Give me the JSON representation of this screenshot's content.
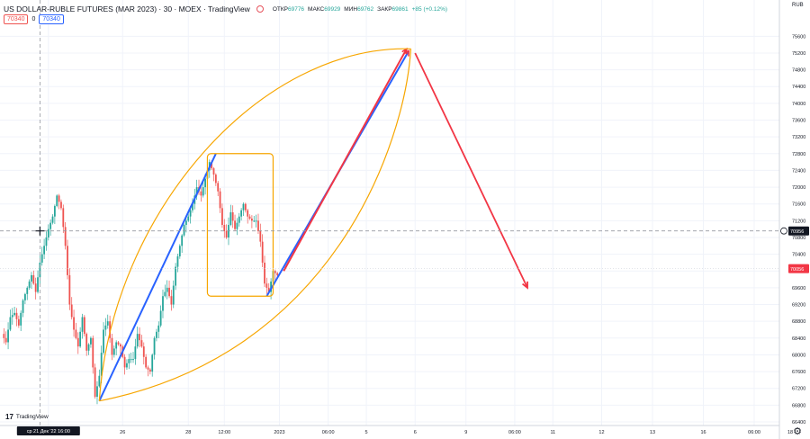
{
  "header": {
    "symbol": "US DOLLAR-RUBLE FUTURES (MAR 2023) · 30 · MOEX · TradingView",
    "open_label": "ОТКР",
    "open_value": "69776",
    "high_label": "МАКС",
    "high_value": "69929",
    "low_label": "МИН",
    "low_value": "69762",
    "close_label": "ЗАКР",
    "close_value": "69861",
    "change": "+85 (+0.12%)",
    "price_red": "70340",
    "zero": "0",
    "price_blue": "70340"
  },
  "logo_text": "TradingView",
  "colors": {
    "up": "#26a69a",
    "down": "#ef5350",
    "blue_line": "#2962ff",
    "red_line": "#f23645",
    "orange": "#f7a600",
    "last_price": "#f23645",
    "crosshair_label": "#131722"
  },
  "chart_data": {
    "type": "candlestick",
    "currency": "RUB",
    "ylim": [
      66400,
      75800
    ],
    "y_ticks": [
      66400,
      66800,
      67200,
      67600,
      68000,
      68400,
      68800,
      69200,
      69600,
      70000,
      70400,
      70800,
      71200,
      71600,
      72000,
      72400,
      72800,
      73200,
      73600,
      74000,
      74400,
      74800,
      75200,
      75600
    ],
    "y_tick_labels": [
      "66400",
      "66800",
      "67200",
      "67600",
      "68000",
      "68400",
      "68800",
      "69200",
      "69600",
      "70000",
      "70400",
      "70800",
      "71200",
      "71600",
      "72000",
      "72400",
      "72800",
      "73200",
      "73600",
      "74000",
      "74400",
      "74800",
      "75200",
      "75600"
    ],
    "x_ticks": [
      {
        "i": 22,
        "label": "ср 21 Дек '22  16:00",
        "highlight": true
      },
      {
        "i": 57,
        "label": "26"
      },
      {
        "i": 88,
        "label": "28"
      },
      {
        "i": 105,
        "label": "12:00"
      },
      {
        "i": 131,
        "label": "2023"
      },
      {
        "i": 154,
        "label": "06:00"
      },
      {
        "i": 172,
        "label": "5"
      },
      {
        "i": 195,
        "label": "6"
      },
      {
        "i": 219,
        "label": "9"
      },
      {
        "i": 242,
        "label": "06:00"
      },
      {
        "i": 260,
        "label": "11"
      },
      {
        "i": 283,
        "label": "12"
      },
      {
        "i": 307,
        "label": "13"
      },
      {
        "i": 331,
        "label": "16"
      },
      {
        "i": 355,
        "label": "06:00"
      },
      {
        "i": 372,
        "label": "18"
      }
    ],
    "last_price_label": "70056",
    "crosshair_price_label": "70956",
    "crosshair_price": 70956,
    "crosshair_x_index": 18,
    "path_points": [
      [
        0,
        68500
      ],
      [
        2,
        68300
      ],
      [
        4,
        68900
      ],
      [
        6,
        69000
      ],
      [
        8,
        68700
      ],
      [
        10,
        69300
      ],
      [
        12,
        69600
      ],
      [
        14,
        69900
      ],
      [
        16,
        69500
      ],
      [
        18,
        70200
      ],
      [
        20,
        70600
      ],
      [
        22,
        71000
      ],
      [
        24,
        71300
      ],
      [
        26,
        71800
      ],
      [
        28,
        71500
      ],
      [
        30,
        70600
      ],
      [
        32,
        69200
      ],
      [
        34,
        68600
      ],
      [
        36,
        68200
      ],
      [
        38,
        68900
      ],
      [
        40,
        68100
      ],
      [
        42,
        68400
      ],
      [
        44,
        67000
      ],
      [
        46,
        67500
      ],
      [
        48,
        68600
      ],
      [
        50,
        68800
      ],
      [
        52,
        68000
      ],
      [
        54,
        68300
      ],
      [
        56,
        68200
      ],
      [
        58,
        67700
      ],
      [
        60,
        67900
      ],
      [
        62,
        67900
      ],
      [
        64,
        68500
      ],
      [
        66,
        68200
      ],
      [
        68,
        67700
      ],
      [
        70,
        67600
      ],
      [
        72,
        68400
      ],
      [
        74,
        68700
      ],
      [
        76,
        69400
      ],
      [
        78,
        69600
      ],
      [
        80,
        69200
      ],
      [
        82,
        70100
      ],
      [
        84,
        70600
      ],
      [
        86,
        71100
      ],
      [
        88,
        71300
      ],
      [
        90,
        71600
      ],
      [
        92,
        72000
      ],
      [
        94,
        71800
      ],
      [
        96,
        72200
      ],
      [
        98,
        72600
      ],
      [
        100,
        72300
      ],
      [
        102,
        71900
      ],
      [
        104,
        71100
      ],
      [
        106,
        70800
      ],
      [
        108,
        71400
      ],
      [
        110,
        71000
      ],
      [
        112,
        71300
      ],
      [
        114,
        71600
      ],
      [
        116,
        71300
      ],
      [
        118,
        71200
      ],
      [
        120,
        71200
      ],
      [
        122,
        70700
      ],
      [
        124,
        69700
      ],
      [
        126,
        69500
      ],
      [
        128,
        70000
      ],
      [
        130,
        69900
      ]
    ],
    "drawings": {
      "blue_lines": [
        [
          [
            46,
            66900
          ],
          [
            101,
            72800
          ]
        ],
        [
          [
            125,
            69400
          ],
          [
            192,
            75250
          ]
        ]
      ],
      "red_lines": [
        [
          [
            133,
            70000
          ],
          [
            191,
            75300
          ]
        ]
      ],
      "red_arrow": [
        [
          195,
          75200
        ],
        [
          248,
          69600
        ]
      ],
      "orange_rect": [
        [
          97,
          72800
        ],
        [
          128,
          69400
        ]
      ],
      "orange_arc_top": [
        [
          46,
          66900
        ],
        [
          52,
          71400
        ],
        [
          122,
          75400
        ],
        [
          193,
          75300
        ]
      ],
      "orange_arc_bottom": [
        [
          46,
          66900
        ],
        [
          156,
          68000
        ],
        [
          190,
          73000
        ],
        [
          193,
          75300
        ]
      ]
    }
  }
}
